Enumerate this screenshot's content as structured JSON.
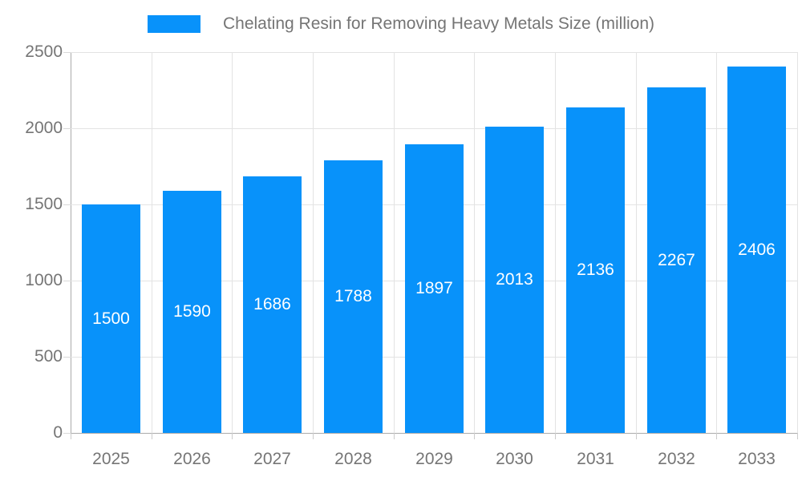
{
  "chart_data": {
    "type": "bar",
    "title": "Chelating Resin for Removing Heavy Metals Size (million)",
    "categories": [
      "2025",
      "2026",
      "2027",
      "2028",
      "2029",
      "2030",
      "2031",
      "2032",
      "2033"
    ],
    "values": [
      1500,
      1590,
      1686,
      1788,
      1897,
      2013,
      2136,
      2267,
      2406
    ],
    "xlabel": "",
    "ylabel": "",
    "ylim": [
      0,
      2500
    ],
    "yticks": [
      0,
      500,
      1000,
      1500,
      2000,
      2500
    ],
    "grid": true,
    "legend_position": "top",
    "bar_label_position": "inside-middle"
  },
  "colors": {
    "bar": "#0892fa",
    "axis_text": "#757575",
    "bar_label_text": "#ffffff",
    "axis_line": "#aaaaaa",
    "gridline": "#e3e3e3",
    "tick": "#cccccc",
    "background": "#ffffff"
  }
}
